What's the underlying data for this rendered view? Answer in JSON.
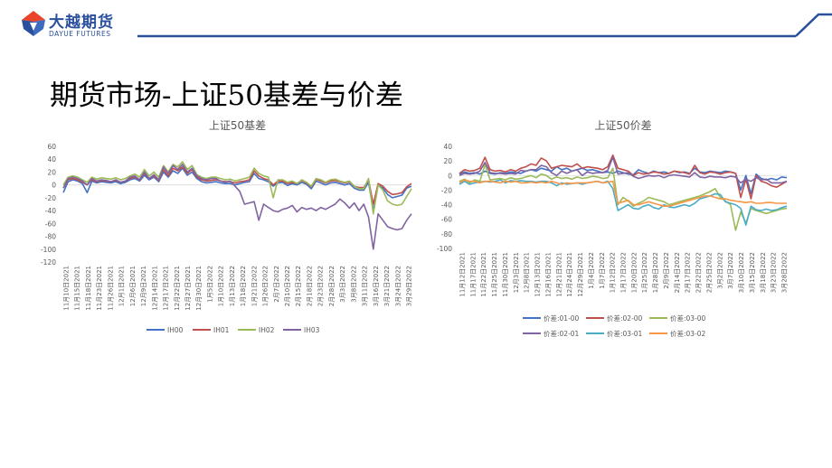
{
  "header": {
    "brand_cn": "大越期货",
    "brand_en": "DAYUE FUTURES",
    "page_title": "期货市场-上证50基差与价差",
    "brand_color": "#2a4f9c",
    "accent_color": "#e8452a"
  },
  "chart_data": [
    {
      "type": "line",
      "title": "上证50基差",
      "ylim": [
        -120,
        60
      ],
      "yticks": [
        60,
        40,
        20,
        0,
        -20,
        -40,
        -60,
        -80,
        -100,
        -120
      ],
      "legend_position": "bottom",
      "x_tick_labels": [
        "11月10日2021",
        "11月15日2021",
        "11月18日2021",
        "11月23日2021",
        "11月26日2021",
        "12月1日2021",
        "12月6日2021",
        "12月9日2021",
        "12月14日2021",
        "12月17日2021",
        "12月22日2021",
        "12月27日2021",
        "12月30日2021",
        "1月5日2022",
        "1月10日2022",
        "1月13日2022",
        "1月18日2022",
        "1月21日2022",
        "1月26日2022",
        "2月7日2022",
        "2月10日2022",
        "2月15日2022",
        "2月18日2022",
        "2月23日2022",
        "2月28日2022",
        "3月3日2022",
        "3月8日2022",
        "3月11日2022",
        "3月16日2022",
        "3月21日2022",
        "3月24日2022",
        "3月29日2022"
      ],
      "series": [
        {
          "name": "IH00",
          "color": "#4472c4",
          "values": [
            -12,
            5,
            8,
            6,
            2,
            -12,
            6,
            3,
            5,
            4,
            3,
            5,
            2,
            4,
            8,
            10,
            6,
            15,
            8,
            12,
            5,
            20,
            12,
            22,
            18,
            26,
            15,
            20,
            10,
            5,
            3,
            4,
            5,
            3,
            2,
            2,
            0,
            2,
            4,
            5,
            18,
            10,
            8,
            5,
            -2,
            3,
            4,
            -1,
            2,
            0,
            4,
            1,
            -6,
            6,
            3,
            0,
            3,
            4,
            2,
            0,
            2,
            -5,
            -8,
            -8,
            4,
            -40,
            0,
            -5,
            -15,
            -20,
            -18,
            -16,
            -5,
            -2
          ]
        },
        {
          "name": "IH01",
          "color": "#c0504d",
          "values": [
            -5,
            8,
            10,
            8,
            4,
            0,
            8,
            5,
            7,
            6,
            5,
            7,
            4,
            6,
            10,
            12,
            8,
            18,
            10,
            14,
            7,
            24,
            14,
            26,
            22,
            28,
            18,
            24,
            12,
            8,
            6,
            7,
            8,
            6,
            5,
            5,
            3,
            5,
            6,
            8,
            22,
            14,
            10,
            8,
            0,
            6,
            6,
            2,
            4,
            2,
            7,
            3,
            -3,
            9,
            6,
            3,
            6,
            7,
            5,
            3,
            5,
            -2,
            -4,
            -4,
            8,
            -30,
            2,
            -2,
            -10,
            -15,
            -14,
            -12,
            -3,
            2
          ]
        },
        {
          "name": "IH02",
          "color": "#9bbb59",
          "values": [
            0,
            12,
            14,
            12,
            8,
            4,
            12,
            9,
            11,
            10,
            9,
            11,
            8,
            10,
            14,
            17,
            12,
            24,
            14,
            20,
            12,
            30,
            20,
            32,
            28,
            36,
            24,
            30,
            16,
            12,
            10,
            12,
            12,
            10,
            8,
            9,
            6,
            8,
            10,
            12,
            26,
            18,
            14,
            12,
            -20,
            8,
            8,
            4,
            6,
            2,
            8,
            4,
            -2,
            10,
            8,
            4,
            8,
            9,
            6,
            4,
            6,
            -2,
            -6,
            -6,
            10,
            -45,
            0,
            -8,
            -25,
            -30,
            -32,
            -30,
            -18,
            -6
          ]
        },
        {
          "name": "IH03",
          "color": "#8064a2",
          "values": [
            -5,
            10,
            12,
            10,
            6,
            0,
            10,
            6,
            8,
            7,
            5,
            8,
            4,
            6,
            12,
            14,
            8,
            20,
            10,
            16,
            8,
            28,
            18,
            30,
            24,
            32,
            20,
            26,
            14,
            10,
            8,
            10,
            10,
            6,
            4,
            6,
            -2,
            -10,
            -30,
            -28,
            -26,
            -55,
            -30,
            -35,
            -40,
            -42,
            -38,
            -36,
            -32,
            -42,
            -35,
            -38,
            -36,
            -40,
            -35,
            -38,
            -34,
            -30,
            -22,
            -28,
            -36,
            -28,
            -40,
            -30,
            -50,
            -100,
            -45,
            -55,
            -65,
            -68,
            -70,
            -68,
            -55,
            -45
          ]
        }
      ]
    },
    {
      "type": "line",
      "title": "上证50价差",
      "ylim": [
        -100,
        40
      ],
      "yticks": [
        40,
        20,
        0,
        -20,
        -40,
        -60,
        -80,
        -100
      ],
      "legend_position": "bottom",
      "x_tick_labels": [
        "11月12日2021",
        "11月17日2021",
        "11月22日2021",
        "11月25日2021",
        "11月30日2021",
        "12月3日2021",
        "12月8日2021",
        "12月13日2021",
        "12月16日2021",
        "12月21日2021",
        "12月24日2021",
        "12月29日2021",
        "1月4日2022",
        "1月7日2022",
        "1月12日2022",
        "1月17日2022",
        "1月20日2022",
        "1月25日2022",
        "1月28日2022",
        "2月9日2022",
        "2月14日2022",
        "2月17日2022",
        "2月22日2022",
        "2月25日2022",
        "3月2日2022",
        "3月7日2022",
        "3月10日2022",
        "3月15日2022",
        "3月18日2022",
        "3月23日2022",
        "3月28日2022"
      ],
      "series": [
        {
          "name": "价差:01-00",
          "color": "#4472c4",
          "values": [
            2,
            5,
            3,
            4,
            2,
            6,
            3,
            2,
            4,
            3,
            5,
            4,
            3,
            6,
            8,
            6,
            10,
            8,
            6,
            12,
            8,
            10,
            6,
            8,
            10,
            7,
            8,
            6,
            4,
            5,
            3,
            6,
            4,
            2,
            1,
            8,
            5,
            3,
            6,
            4,
            5,
            3,
            6,
            4,
            5,
            3,
            10,
            5,
            4,
            6,
            5,
            4,
            6,
            5,
            3,
            -20,
            0,
            -25,
            2,
            -4,
            -6,
            -4,
            -6,
            -2,
            -3
          ]
        },
        {
          "name": "价差:02-00",
          "color": "#c0504d",
          "values": [
            3,
            8,
            6,
            7,
            10,
            25,
            8,
            6,
            7,
            5,
            8,
            6,
            10,
            12,
            16,
            14,
            24,
            20,
            10,
            12,
            14,
            13,
            12,
            16,
            10,
            12,
            11,
            10,
            8,
            12,
            28,
            10,
            8,
            6,
            0,
            4,
            2,
            3,
            5,
            4,
            2,
            3,
            6,
            5,
            4,
            2,
            14,
            4,
            2,
            5,
            4,
            2,
            4,
            5,
            3,
            -30,
            -5,
            -32,
            0,
            -8,
            -10,
            -14,
            -16,
            -12,
            -8
          ]
        },
        {
          "name": "价差:03-00",
          "color": "#9bbb59",
          "values": [
            -8,
            -5,
            -10,
            -6,
            -8,
            15,
            -6,
            -5,
            -4,
            -6,
            -3,
            -5,
            -4,
            -2,
            0,
            -3,
            2,
            0,
            -5,
            -2,
            -4,
            -3,
            -5,
            -2,
            -4,
            -3,
            -1,
            -2,
            -4,
            -3,
            10,
            -40,
            -30,
            -35,
            -42,
            -38,
            -35,
            -30,
            -32,
            -34,
            -36,
            -40,
            -38,
            -36,
            -34,
            -32,
            -30,
            -28,
            -25,
            -22,
            -18,
            -30,
            -35,
            -40,
            -75,
            -50,
            -65,
            -45,
            -48,
            -50,
            -52,
            -50,
            -48,
            -46,
            -45
          ]
        },
        {
          "name": "价差:02-01",
          "color": "#8064a2",
          "values": [
            0,
            3,
            2,
            3,
            6,
            18,
            4,
            3,
            3,
            2,
            3,
            2,
            7,
            6,
            8,
            8,
            14,
            12,
            4,
            0,
            6,
            3,
            6,
            8,
            0,
            5,
            3,
            4,
            4,
            7,
            25,
            2,
            3,
            4,
            -1,
            -4,
            -2,
            0,
            -1,
            0,
            -3,
            0,
            1,
            0,
            -1,
            -2,
            4,
            -2,
            -3,
            -1,
            -2,
            -2,
            -3,
            -1,
            -2,
            -10,
            -5,
            -8,
            -3,
            -6,
            -5,
            -10,
            -10,
            -10,
            -8
          ]
        },
        {
          "name": "价差:03-01",
          "color": "#4bacc6",
          "values": [
            -12,
            -8,
            -12,
            -10,
            -9,
            -8,
            -9,
            -8,
            -6,
            -10,
            -7,
            -8,
            -7,
            -8,
            -8,
            -9,
            -8,
            -8,
            -10,
            -14,
            -10,
            -12,
            -11,
            -10,
            -12,
            -10,
            -9,
            -8,
            -10,
            -8,
            -18,
            -48,
            -44,
            -40,
            -45,
            -46,
            -42,
            -40,
            -44,
            -46,
            -40,
            -43,
            -44,
            -42,
            -40,
            -42,
            -38,
            -32,
            -30,
            -28,
            -25,
            -26,
            -36,
            -38,
            -40,
            -45,
            -68,
            -42,
            -47,
            -48,
            -46,
            -48,
            -47,
            -44,
            -42
          ]
        },
        {
          "name": "价差:03-02",
          "color": "#f79646",
          "values": [
            -10,
            -6,
            -8,
            -8,
            -10,
            -8,
            -8,
            -9,
            -10,
            -8,
            -9,
            -8,
            -10,
            -10,
            -9,
            -10,
            -9,
            -10,
            -8,
            -10,
            -12,
            -10,
            -11,
            -10,
            -10,
            -10,
            -9,
            -8,
            -10,
            -9,
            -8,
            -38,
            -36,
            -34,
            -40,
            -40,
            -38,
            -36,
            -38,
            -40,
            -42,
            -42,
            -40,
            -38,
            -36,
            -34,
            -32,
            -30,
            -28,
            -28,
            -30,
            -32,
            -32,
            -34,
            -35,
            -36,
            -37,
            -36,
            -38,
            -38,
            -37,
            -37,
            -38,
            -38,
            -38
          ]
        }
      ]
    }
  ]
}
